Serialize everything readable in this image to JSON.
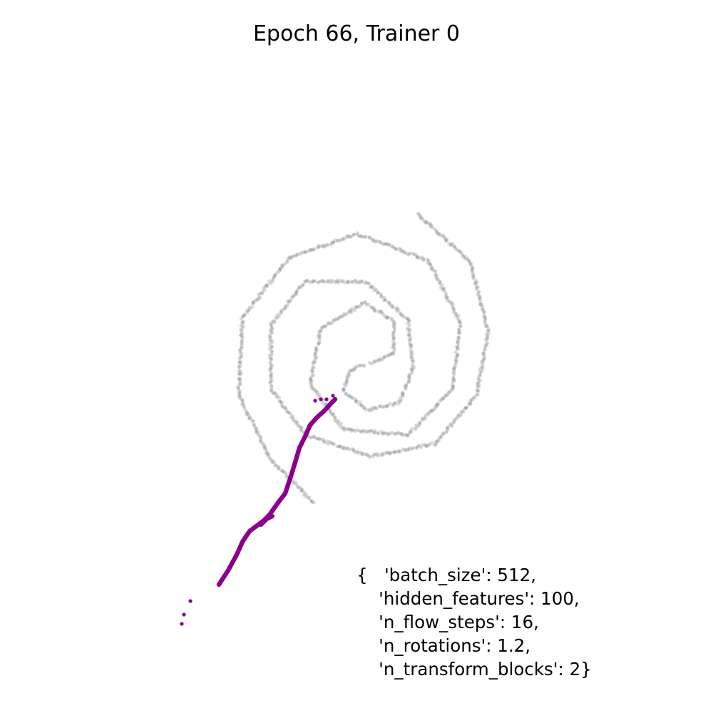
{
  "chart_data": {
    "type": "scatter",
    "title": "Epoch 66, Trainer 0",
    "xlabel": "",
    "ylabel": "",
    "axes_visible": false,
    "grid": false,
    "xlim": [
      -4,
      4
    ],
    "ylim": [
      -4,
      4
    ],
    "series": [
      {
        "role": "target",
        "color": "#808080",
        "shape": "two-arm spiral",
        "arm_1": [
          [
            0.2,
            -0.1
          ],
          [
            0.52,
            0.05
          ],
          [
            0.52,
            0.5
          ],
          [
            0.12,
            0.75
          ],
          [
            -0.5,
            0.4
          ],
          [
            -0.65,
            -0.4
          ],
          [
            -0.18,
            -1.02
          ],
          [
            0.72,
            -1.1
          ],
          [
            1.35,
            -0.45
          ],
          [
            1.45,
            0.5
          ],
          [
            1.0,
            1.35
          ],
          [
            0.0,
            1.72
          ],
          [
            -0.95,
            1.38
          ],
          [
            -1.6,
            0.55
          ],
          [
            -1.65,
            -0.55
          ],
          [
            -1.2,
            -1.45
          ],
          [
            -0.6,
            -2.05
          ]
        ],
        "arm_2": [
          [
            0.1,
            -0.12
          ],
          [
            -0.1,
            -0.2
          ],
          [
            -0.18,
            -0.48
          ],
          [
            0.15,
            -0.75
          ],
          [
            0.6,
            -0.65
          ],
          [
            0.8,
            -0.15
          ],
          [
            0.72,
            0.52
          ],
          [
            0.12,
            1.05
          ],
          [
            -0.72,
            1.05
          ],
          [
            -1.2,
            0.45
          ],
          [
            -1.2,
            -0.45
          ],
          [
            -0.72,
            -1.1
          ],
          [
            0.2,
            -1.4
          ],
          [
            1.1,
            -1.22
          ],
          [
            1.68,
            -0.55
          ],
          [
            1.85,
            0.35
          ],
          [
            1.6,
            1.32
          ],
          [
            0.85,
            2.0
          ]
        ]
      },
      {
        "role": "samples",
        "color": "#8b008b",
        "main_curve": [
          [
            -1.93,
            -3.2
          ],
          [
            -1.8,
            -3.0
          ],
          [
            -1.68,
            -2.78
          ],
          [
            -1.6,
            -2.6
          ],
          [
            -1.5,
            -2.45
          ],
          [
            -1.38,
            -2.36
          ],
          [
            -1.3,
            -2.3
          ],
          [
            -1.22,
            -2.22
          ],
          [
            -1.1,
            -2.05
          ],
          [
            -1.0,
            -1.92
          ],
          [
            -0.92,
            -1.68
          ],
          [
            -0.85,
            -1.45
          ],
          [
            -0.8,
            -1.28
          ],
          [
            -0.72,
            -1.12
          ],
          [
            -0.65,
            -0.96
          ],
          [
            -0.55,
            -0.85
          ],
          [
            -0.45,
            -0.76
          ],
          [
            -0.36,
            -0.66
          ],
          [
            -0.3,
            -0.6
          ]
        ],
        "branch": [
          [
            -1.34,
            -2.36
          ],
          [
            -1.26,
            -2.28
          ],
          [
            -1.18,
            -2.24
          ]
        ],
        "outliers": [
          [
            -2.33,
            -3.43
          ],
          [
            -2.42,
            -3.62
          ],
          [
            -2.45,
            -3.75
          ],
          [
            -0.33,
            -0.55
          ],
          [
            -0.42,
            -0.6
          ],
          [
            -0.5,
            -0.6
          ],
          [
            -0.58,
            -0.62
          ]
        ]
      }
    ],
    "annotation": "{   'batch_size': 512,\n    'hidden_features': 100,\n    'n_flow_steps': 16,\n    'n_rotations': 1.2,\n    'n_transform_blocks': 2}"
  }
}
